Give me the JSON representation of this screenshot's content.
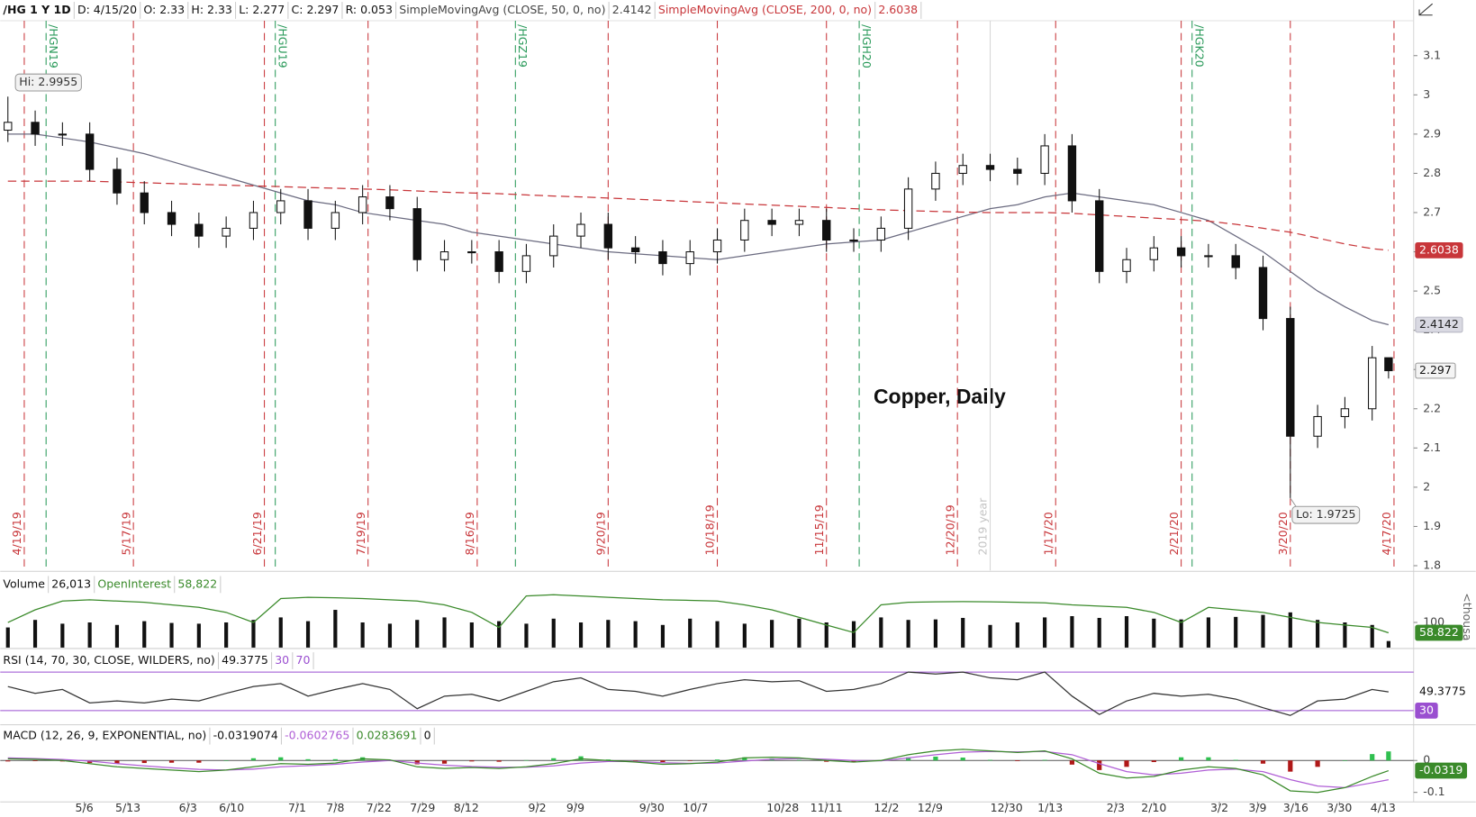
{
  "chart_data": [
    {
      "type": "candlestick",
      "title": "Copper, Daily",
      "header": {
        "symbol": "/HG 1 Y 1D",
        "date": "D: 4/15/20",
        "open": "O: 2.33",
        "high": "H: 2.33",
        "low": "L: 2.277",
        "close": "C: 2.297",
        "range": "R: 0.053"
      },
      "x": [
        0,
        5,
        10,
        15,
        20,
        25,
        30,
        35,
        40,
        45,
        50,
        55,
        60,
        65,
        70,
        75,
        80,
        85,
        90,
        95,
        100,
        105,
        110,
        115,
        120,
        125,
        130,
        135,
        140,
        145,
        150,
        155,
        160,
        165,
        170,
        175,
        180,
        185,
        190,
        195,
        200,
        205,
        210,
        215,
        220,
        225,
        230,
        235,
        240,
        245,
        250,
        253
      ],
      "open": [
        2.91,
        2.93,
        2.9,
        2.9,
        2.81,
        2.75,
        2.7,
        2.67,
        2.64,
        2.66,
        2.7,
        2.73,
        2.66,
        2.7,
        2.74,
        2.71,
        2.58,
        2.6,
        2.6,
        2.55,
        2.59,
        2.64,
        2.67,
        2.61,
        2.6,
        2.57,
        2.6,
        2.63,
        2.68,
        2.67,
        2.68,
        2.63,
        2.63,
        2.66,
        2.76,
        2.8,
        2.82,
        2.81,
        2.8,
        2.87,
        2.73,
        2.55,
        2.58,
        2.61,
        2.59,
        2.59,
        2.56,
        2.43,
        2.13,
        2.18,
        2.2,
        2.33
      ],
      "high": [
        2.9955,
        2.96,
        2.93,
        2.93,
        2.84,
        2.78,
        2.73,
        2.7,
        2.69,
        2.73,
        2.76,
        2.76,
        2.73,
        2.77,
        2.77,
        2.74,
        2.63,
        2.63,
        2.63,
        2.62,
        2.67,
        2.7,
        2.7,
        2.64,
        2.63,
        2.63,
        2.66,
        2.71,
        2.71,
        2.71,
        2.71,
        2.66,
        2.69,
        2.79,
        2.83,
        2.85,
        2.85,
        2.84,
        2.9,
        2.9,
        2.76,
        2.61,
        2.64,
        2.64,
        2.62,
        2.62,
        2.59,
        2.46,
        2.21,
        2.23,
        2.36,
        2.33
      ],
      "low": [
        2.88,
        2.87,
        2.87,
        2.78,
        2.72,
        2.67,
        2.64,
        2.61,
        2.61,
        2.63,
        2.67,
        2.63,
        2.63,
        2.67,
        2.68,
        2.55,
        2.55,
        2.57,
        2.52,
        2.52,
        2.56,
        2.61,
        2.58,
        2.57,
        2.54,
        2.54,
        2.57,
        2.6,
        2.64,
        2.64,
        2.6,
        2.6,
        2.6,
        2.63,
        2.73,
        2.77,
        2.78,
        2.77,
        2.77,
        2.7,
        2.52,
        2.52,
        2.55,
        2.56,
        2.56,
        2.53,
        2.4,
        1.9725,
        2.1,
        2.15,
        2.17,
        2.277
      ],
      "close": [
        2.93,
        2.9,
        2.9,
        2.81,
        2.75,
        2.7,
        2.67,
        2.64,
        2.66,
        2.7,
        2.73,
        2.66,
        2.7,
        2.74,
        2.71,
        2.58,
        2.6,
        2.6,
        2.55,
        2.59,
        2.64,
        2.67,
        2.61,
        2.6,
        2.57,
        2.6,
        2.63,
        2.68,
        2.67,
        2.68,
        2.63,
        2.63,
        2.66,
        2.76,
        2.8,
        2.82,
        2.81,
        2.8,
        2.87,
        2.73,
        2.55,
        2.58,
        2.61,
        2.59,
        2.59,
        2.56,
        2.43,
        2.13,
        2.18,
        2.2,
        2.33,
        2.297
      ],
      "color": "#111111",
      "series": [
        {
          "name": "SimpleMovingAvg (CLOSE, 50, 0, no)",
          "color": "#6b6b80",
          "dashed": false,
          "values": [
            2.9,
            2.9,
            2.89,
            2.88,
            2.865,
            2.85,
            2.83,
            2.81,
            2.79,
            2.77,
            2.75,
            2.73,
            2.72,
            2.7,
            2.69,
            2.68,
            2.67,
            2.65,
            2.64,
            2.63,
            2.62,
            2.61,
            2.6,
            2.595,
            2.59,
            2.585,
            2.58,
            2.59,
            2.6,
            2.61,
            2.62,
            2.625,
            2.63,
            2.65,
            2.67,
            2.69,
            2.71,
            2.72,
            2.74,
            2.75,
            2.74,
            2.73,
            2.72,
            2.7,
            2.68,
            2.64,
            2.6,
            2.55,
            2.5,
            2.46,
            2.425,
            2.4142
          ]
        },
        {
          "name": "SimpleMovingAvg (CLOSE, 200, 0, no)",
          "color": "#c8363a",
          "dashed": true,
          "values": [
            2.78,
            2.78,
            2.78,
            2.78,
            2.778,
            2.776,
            2.774,
            2.772,
            2.77,
            2.768,
            2.766,
            2.764,
            2.762,
            2.76,
            2.758,
            2.755,
            2.752,
            2.75,
            2.748,
            2.745,
            2.742,
            2.74,
            2.737,
            2.734,
            2.731,
            2.728,
            2.725,
            2.722,
            2.719,
            2.716,
            2.713,
            2.71,
            2.707,
            2.705,
            2.703,
            2.701,
            2.7,
            2.7,
            2.7,
            2.698,
            2.694,
            2.69,
            2.686,
            2.682,
            2.678,
            2.67,
            2.66,
            2.65,
            2.635,
            2.62,
            2.608,
            2.6038
          ]
        }
      ],
      "hi_label": "Hi: 2.9955",
      "lo_label": "Lo: 1.9725",
      "expirations": [
        {
          "label": "4/19/19",
          "x": 3
        },
        {
          "label": "5/17/19",
          "x": 23
        },
        {
          "label": "6/21/19",
          "x": 47
        },
        {
          "label": "7/19/19",
          "x": 66
        },
        {
          "label": "8/16/19",
          "x": 86
        },
        {
          "label": "9/20/19",
          "x": 110
        },
        {
          "label": "10/18/19",
          "x": 130
        },
        {
          "label": "11/15/19",
          "x": 150
        },
        {
          "label": "12/20/19",
          "x": 174
        },
        {
          "label": "1/17/20",
          "x": 192
        },
        {
          "label": "2/21/20",
          "x": 215
        },
        {
          "label": "3/20/20",
          "x": 235
        },
        {
          "label": "4/17/20",
          "x": 254
        }
      ],
      "expiration_color": "#c8363a",
      "rolls": [
        {
          "label": "/HGN19",
          "x": 7
        },
        {
          "label": "/HGU19",
          "x": 49
        },
        {
          "label": "/HGZ19",
          "x": 93
        },
        {
          "label": "/HGH20",
          "x": 156
        },
        {
          "label": "/HGK20",
          "x": 217
        }
      ],
      "roll_color": "#2a9a5a",
      "year_marker": {
        "label": "2019 year",
        "x": 180
      },
      "xlim": [
        -1.4,
        257.6
      ],
      "ylim": [
        1.788,
        3.189
      ],
      "yticks": [
        1.8,
        1.9,
        2,
        2.1,
        2.2,
        2.3,
        2.4,
        2.5,
        2.6,
        2.7,
        2.8,
        2.9,
        3,
        3.1
      ],
      "grid": false
    },
    {
      "type": "bar",
      "title": "Volume",
      "title_value": "26,013",
      "x": [
        0,
        5,
        10,
        15,
        20,
        25,
        30,
        35,
        40,
        45,
        50,
        55,
        60,
        65,
        70,
        75,
        80,
        85,
        90,
        95,
        100,
        105,
        110,
        115,
        120,
        125,
        130,
        135,
        140,
        145,
        150,
        155,
        160,
        165,
        170,
        175,
        180,
        185,
        190,
        195,
        200,
        205,
        210,
        215,
        220,
        225,
        230,
        235,
        240,
        245,
        250,
        253
      ],
      "values": [
        80000,
        110000,
        95000,
        100000,
        90000,
        105000,
        98000,
        95000,
        100000,
        110000,
        120000,
        105000,
        150000,
        100000,
        95000,
        110000,
        120000,
        100000,
        105000,
        95000,
        115000,
        100000,
        110000,
        105000,
        90000,
        115000,
        105000,
        95000,
        110000,
        115000,
        100000,
        105000,
        120000,
        110000,
        112000,
        118000,
        90000,
        100000,
        120000,
        125000,
        118000,
        125000,
        115000,
        112000,
        120000,
        122000,
        130000,
        140000,
        110000,
        100000,
        90000,
        26013
      ],
      "color": "#111111",
      "series": [
        {
          "name": "OpenInterest",
          "color": "#3a8a2a",
          "value_label": "58,822",
          "tag_label": "58.822",
          "values": [
            100000,
            150000,
            185000,
            190000,
            185000,
            180000,
            170000,
            160000,
            140000,
            100000,
            195000,
            200000,
            198000,
            195000,
            190000,
            185000,
            170000,
            140000,
            80000,
            205000,
            210000,
            205000,
            200000,
            195000,
            190000,
            188000,
            185000,
            170000,
            150000,
            120000,
            90000,
            60000,
            170000,
            180000,
            182000,
            183000,
            182000,
            180000,
            178000,
            170000,
            165000,
            160000,
            140000,
            100000,
            160000,
            150000,
            140000,
            120000,
            100000,
            90000,
            80000,
            58822
          ]
        }
      ],
      "xlim": [
        -1.4,
        257.6
      ],
      "ylim": [
        0,
        292000
      ],
      "yticks": [
        {
          "value": 100000,
          "label": "100"
        }
      ],
      "unit_label": "<thousa"
    },
    {
      "type": "line",
      "title": "RSI (14, 70, 30, CLOSE, WILDERS, no)",
      "x": [
        0,
        5,
        10,
        15,
        20,
        25,
        30,
        35,
        40,
        45,
        50,
        55,
        60,
        65,
        70,
        75,
        80,
        85,
        90,
        95,
        100,
        105,
        110,
        115,
        120,
        125,
        130,
        135,
        140,
        145,
        150,
        155,
        160,
        165,
        170,
        175,
        180,
        185,
        190,
        195,
        200,
        205,
        210,
        215,
        220,
        225,
        230,
        235,
        240,
        245,
        250,
        253
      ],
      "values": [
        55,
        48,
        52,
        38,
        40,
        38,
        42,
        40,
        48,
        55,
        58,
        45,
        52,
        58,
        52,
        32,
        45,
        47,
        40,
        50,
        60,
        64,
        52,
        50,
        45,
        52,
        58,
        62,
        60,
        61,
        50,
        52,
        58,
        70,
        68,
        70,
        64,
        62,
        70,
        45,
        26,
        40,
        48,
        45,
        47,
        42,
        33,
        25,
        40,
        42,
        52,
        49.3775
      ],
      "color": "#333333",
      "levels": [
        30,
        70
      ],
      "level_color": "#9a4fd0",
      "xlim": [
        -1.4,
        257.6
      ],
      "ylim": [
        17.3,
        91.5
      ]
    },
    {
      "type": "macd",
      "title": "MACD (12, 26, 9, EXPONENTIAL, no)",
      "x": [
        0,
        5,
        10,
        15,
        20,
        25,
        30,
        35,
        40,
        45,
        50,
        55,
        60,
        65,
        70,
        75,
        80,
        85,
        90,
        95,
        100,
        105,
        110,
        115,
        120,
        125,
        130,
        135,
        140,
        145,
        150,
        155,
        160,
        165,
        170,
        175,
        180,
        185,
        190,
        195,
        200,
        205,
        210,
        215,
        220,
        225,
        230,
        235,
        240,
        245,
        250,
        253
      ],
      "value": [
        0.005,
        0.004,
        0.0,
        -0.01,
        -0.02,
        -0.025,
        -0.03,
        -0.035,
        -0.03,
        -0.02,
        -0.01,
        -0.012,
        -0.008,
        0.005,
        0.002,
        -0.02,
        -0.025,
        -0.022,
        -0.025,
        -0.02,
        -0.01,
        0.005,
        0.0,
        -0.005,
        -0.012,
        -0.01,
        -0.005,
        0.008,
        0.01,
        0.008,
        0.0,
        -0.005,
        0.0,
        0.018,
        0.03,
        0.035,
        0.03,
        0.025,
        0.03,
        0.005,
        -0.04,
        -0.055,
        -0.05,
        -0.03,
        -0.02,
        -0.025,
        -0.045,
        -0.095,
        -0.1,
        -0.085,
        -0.05,
        -0.0319074
      ],
      "avg": [
        0.008,
        0.006,
        0.003,
        -0.002,
        -0.01,
        -0.017,
        -0.023,
        -0.028,
        -0.03,
        -0.027,
        -0.02,
        -0.016,
        -0.012,
        -0.005,
        0.0,
        -0.008,
        -0.015,
        -0.019,
        -0.021,
        -0.021,
        -0.017,
        -0.008,
        -0.003,
        -0.003,
        -0.007,
        -0.009,
        -0.008,
        -0.002,
        0.004,
        0.006,
        0.004,
        0.0,
        -0.001,
        0.008,
        0.018,
        0.026,
        0.028,
        0.027,
        0.028,
        0.018,
        -0.01,
        -0.035,
        -0.045,
        -0.04,
        -0.03,
        -0.027,
        -0.035,
        -0.06,
        -0.08,
        -0.085,
        -0.07,
        -0.0602765
      ],
      "diff": [
        -0.003,
        -0.002,
        -0.003,
        -0.008,
        -0.01,
        -0.008,
        -0.007,
        -0.007,
        0.0,
        0.007,
        0.01,
        0.004,
        0.004,
        0.01,
        0.002,
        -0.012,
        -0.01,
        -0.003,
        -0.004,
        0.001,
        0.007,
        0.013,
        0.003,
        -0.002,
        -0.005,
        -0.001,
        0.003,
        0.01,
        0.006,
        0.002,
        -0.004,
        -0.005,
        0.001,
        0.01,
        0.012,
        0.009,
        0.002,
        -0.002,
        0.002,
        -0.013,
        -0.03,
        -0.02,
        -0.005,
        0.01,
        0.01,
        0.002,
        -0.01,
        -0.035,
        -0.02,
        0.0,
        0.02,
        0.0283691
      ],
      "value_color": "#3a8a2a",
      "avg_color": "#b05fd6",
      "up_color": "#2fbf4f",
      "down_color": "#b01818",
      "zero_line": 0,
      "value_tag": "-0.0319",
      "xlim": [
        -1.4,
        257.6
      ],
      "ylim": [
        -0.124,
        0.103
      ],
      "yticks": [
        -0.1,
        0
      ],
      "xticks": [
        {
          "value": 14,
          "label": "5/6"
        },
        {
          "value": 22,
          "label": "5/13"
        },
        {
          "value": 33,
          "label": "6/3"
        },
        {
          "value": 41,
          "label": "6/10"
        },
        {
          "value": 53,
          "label": "7/1"
        },
        {
          "value": 60,
          "label": "7/8"
        },
        {
          "value": 68,
          "label": "7/22"
        },
        {
          "value": 76,
          "label": "7/29"
        },
        {
          "value": 84,
          "label": "8/12"
        },
        {
          "value": 97,
          "label": "9/2"
        },
        {
          "value": 104,
          "label": "9/9"
        },
        {
          "value": 118,
          "label": "9/30"
        },
        {
          "value": 126,
          "label": "10/7"
        },
        {
          "value": 142,
          "label": "10/28"
        },
        {
          "value": 150,
          "label": "11/11"
        },
        {
          "value": 161,
          "label": "12/2"
        },
        {
          "value": 169,
          "label": "12/9"
        },
        {
          "value": 183,
          "label": "12/30"
        },
        {
          "value": 191,
          "label": "1/13"
        },
        {
          "value": 203,
          "label": "2/3"
        },
        {
          "value": 210,
          "label": "2/10"
        },
        {
          "value": 222,
          "label": "3/2"
        },
        {
          "value": 229,
          "label": "3/9"
        },
        {
          "value": 236,
          "label": "3/16"
        },
        {
          "value": 244,
          "label": "3/30"
        },
        {
          "value": 252,
          "label": "4/13"
        }
      ]
    }
  ]
}
